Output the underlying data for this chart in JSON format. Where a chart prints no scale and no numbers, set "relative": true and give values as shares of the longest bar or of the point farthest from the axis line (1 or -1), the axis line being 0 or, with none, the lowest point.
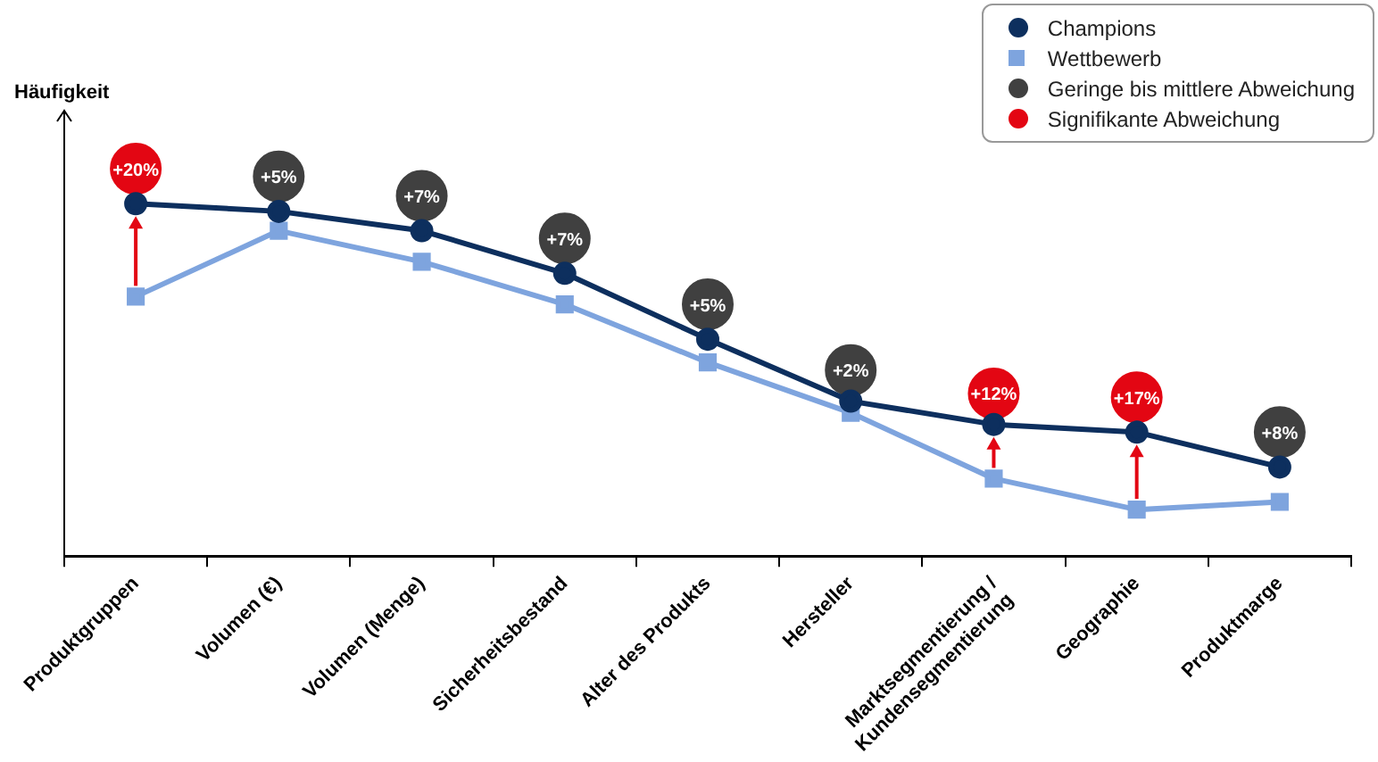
{
  "chart_data": {
    "type": "line",
    "relative": true,
    "legend": "top right",
    "line_style": "solid",
    "grid": false,
    "categories": [
      "Produktgruppen",
      "Volumen (€)",
      "Volumen (Menge)",
      "Sicherheitsbestand",
      "Alter des Produkts",
      "Hersteller",
      "Marktsegmentierung / Kundensegmentierung",
      "Geographie",
      "Produktmarge"
    ],
    "series": [
      {
        "name": "Champions",
        "color": "#0d2f5e",
        "marker": "circle",
        "values": [
          0.91,
          0.89,
          0.84,
          0.73,
          0.56,
          0.4,
          0.34,
          0.32,
          0.23
        ]
      },
      {
        "name": "Wettbewerb",
        "color": "#7ea4de",
        "marker": "square",
        "values": [
          0.67,
          0.84,
          0.76,
          0.65,
          0.5,
          0.37,
          0.2,
          0.12,
          0.14
        ]
      },
      {
        "name": "Geringe bis mittlere Abweichung",
        "type": "scatter",
        "color": "#404040",
        "marker": "circle",
        "values": [
          null,
          0.98,
          0.93,
          0.82,
          0.65,
          0.48,
          null,
          null,
          0.32
        ]
      },
      {
        "name": "Signifikante Abweichung",
        "type": "scatter",
        "color": "#e30613",
        "marker": "circle",
        "values": [
          1,
          null,
          null,
          null,
          null,
          null,
          0.42,
          0.41,
          null
        ]
      }
    ],
    "annotations": [
      "Häufigkeit",
      {
        "text": "+20%",
        "x": "Produktgruppen",
        "y": 1
      },
      {
        "text": "+5%",
        "x": "Volumen (€)",
        "y": 0.98
      },
      {
        "text": "+7%",
        "x": "Volumen (Menge)",
        "y": 0.93
      },
      {
        "text": "+7%",
        "x": "Sicherheitsbestand",
        "y": 0.82
      },
      {
        "text": "+5%",
        "x": "Alter des Produkts",
        "y": 0.65
      },
      {
        "text": "+2%",
        "x": "Hersteller",
        "y": 0.48
      },
      {
        "text": "+12%",
        "x": "Marktsegmentierung / Kundensegmentierung",
        "y": 0.42
      },
      {
        "text": "+17%",
        "x": "Geographie",
        "y": 0.41
      },
      {
        "text": "+8%",
        "x": "Produktmarge",
        "y": 0.32
      }
    ]
  }
}
